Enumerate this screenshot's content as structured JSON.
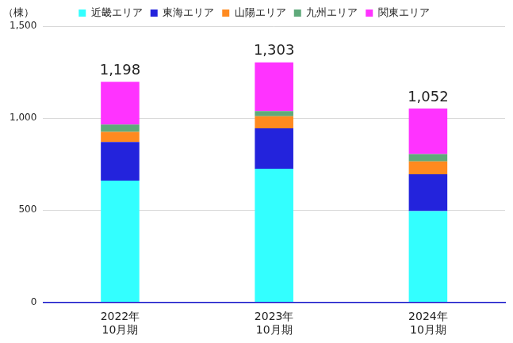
{
  "chart_data": {
    "type": "bar",
    "stacked": true,
    "y_label": "（棟）",
    "categories": [
      "2022年\n10月期",
      "2023年\n10月期",
      "2024年\n10月期"
    ],
    "series": [
      {
        "name": "近畿エリア",
        "color": "#33ffff",
        "values": [
          660,
          725,
          495
        ]
      },
      {
        "name": "東海エリア",
        "color": "#2323dc",
        "values": [
          210,
          220,
          200
        ]
      },
      {
        "name": "山陽エリア",
        "color": "#ff8a1f",
        "values": [
          55,
          65,
          70
        ]
      },
      {
        "name": "九州エリア",
        "color": "#5fa97a",
        "values": [
          40,
          28,
          40
        ]
      },
      {
        "name": "関東エリア",
        "color": "#ff33ff",
        "values": [
          233,
          265,
          247
        ]
      }
    ],
    "totals": [
      {
        "value": 1198,
        "label": "1,198"
      },
      {
        "value": 1303,
        "label": "1,303"
      },
      {
        "value": 1052,
        "label": "1,052"
      }
    ],
    "ylim": [
      0,
      1500
    ],
    "yticks": [
      0,
      500,
      {
        "value": 1000,
        "label": "1,000"
      },
      {
        "value": 1500,
        "label": "1,500"
      }
    ],
    "grid": true,
    "legend": "top"
  }
}
